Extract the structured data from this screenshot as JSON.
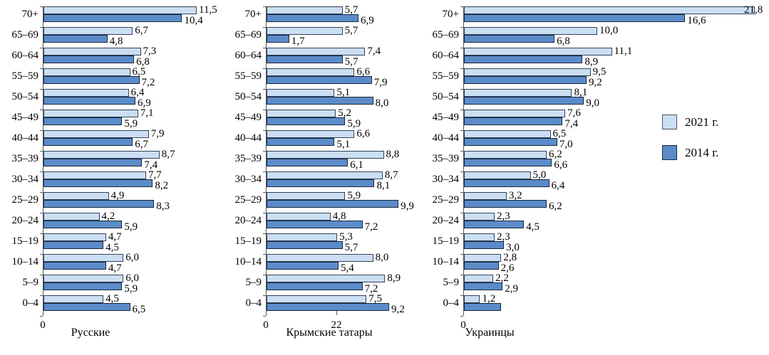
{
  "figure": {
    "colors": {
      "bar_2021": "#CBDEF2",
      "bar_2021_border": "#31425B",
      "bar_2014": "#5B8CC9",
      "bar_2014_border": "#17273E",
      "axis": "#595959",
      "text": "#000000",
      "background": "#FFFFFF"
    },
    "legend": {
      "items": [
        {
          "label": "2021 г.",
          "color": "#CBDEF2",
          "border": "#44546A"
        },
        {
          "label": "2014 г.",
          "color": "#5B8CC9",
          "border": "#17273E"
        }
      ]
    }
  },
  "chart_data": [
    {
      "type": "bar",
      "orientation": "horizontal",
      "title": "Русские",
      "grid": false,
      "xlim": [
        0,
        12
      ],
      "x_tick_labels": [
        "0"
      ],
      "categories": [
        "70+",
        "65–69",
        "60–64",
        "55–59",
        "50–54",
        "45–49",
        "40–44",
        "35–39",
        "30–34",
        "25–29",
        "20–24",
        "15–19",
        "10–14",
        "5–9",
        "0–4"
      ],
      "series": [
        {
          "name": "2021 г.",
          "values": [
            11.5,
            6.7,
            7.3,
            6.5,
            6.4,
            7.1,
            7.9,
            8.7,
            7.7,
            4.9,
            4.2,
            4.7,
            6.0,
            6.0,
            4.5
          ],
          "labels": [
            "11,5",
            "6,7",
            "7,3",
            "6,5",
            "6,4",
            "7,1",
            "7,9",
            "8,7",
            "7,7",
            "4,9",
            "4,2",
            "4,7",
            "6,0",
            "6,0",
            "4,5"
          ]
        },
        {
          "name": "2014 г.",
          "values": [
            10.4,
            4.8,
            6.8,
            7.2,
            6.9,
            5.9,
            6.7,
            7.4,
            8.2,
            8.3,
            5.9,
            4.5,
            4.7,
            5.9,
            6.5
          ],
          "labels": [
            "10,4",
            "4,8",
            "6,8",
            "7,2",
            "6,9",
            "5,9",
            "6,7",
            "7,4",
            "8,2",
            "8,3",
            "5,9",
            "4,5",
            "4,7",
            "5,9",
            "6,5"
          ]
        }
      ]
    },
    {
      "type": "bar",
      "orientation": "horizontal",
      "title": "Крымские татары",
      "grid": false,
      "xlim": [
        0,
        11
      ],
      "x_tick_labels": [
        "0",
        "22"
      ],
      "categories": [
        "70+",
        "65–69",
        "60–64",
        "55–59",
        "50–54",
        "45–49",
        "40–44",
        "35–39",
        "30–34",
        "25–29",
        "20–24",
        "15–19",
        "10–14",
        "5–9",
        "0–4"
      ],
      "series": [
        {
          "name": "2021 г.",
          "values": [
            5.7,
            5.7,
            7.4,
            6.6,
            5.1,
            5.2,
            6.6,
            8.8,
            8.7,
            5.9,
            4.8,
            5.3,
            8.0,
            8.9,
            7.5
          ],
          "labels": [
            "5,7",
            "5,7",
            "7,4",
            "6,6",
            "5,1",
            "5,2",
            "6,6",
            "8,8",
            "8,7",
            "5,9",
            "4,8",
            "5,3",
            "8,0",
            "8,9",
            "7,5"
          ]
        },
        {
          "name": "2014 г.",
          "values": [
            6.9,
            1.7,
            5.7,
            7.9,
            8.0,
            5.9,
            5.1,
            6.1,
            8.1,
            9.9,
            7.2,
            5.7,
            5.4,
            7.2,
            9.2
          ],
          "labels": [
            "6,9",
            "1,7",
            "5,7",
            "7,9",
            "8,0",
            "5,9",
            "5,1",
            "6,1",
            "8,1",
            "9,9",
            "7,2",
            "5,7",
            "5,4",
            "7,2",
            "9,2"
          ]
        }
      ]
    },
    {
      "type": "bar",
      "orientation": "horizontal",
      "title": "Украинцы",
      "grid": false,
      "xlim": [
        0,
        23
      ],
      "x_tick_labels": [
        "0"
      ],
      "categories": [
        "70+",
        "65–69",
        "60–64",
        "55–59",
        "50–54",
        "45–49",
        "40–44",
        "35–39",
        "30–34",
        "25–29",
        "20–24",
        "15–19",
        "10–14",
        "5–9",
        "0–4"
      ],
      "series": [
        {
          "name": "2021 г.",
          "values": [
            21.8,
            10.0,
            11.1,
            9.5,
            8.1,
            7.6,
            6.5,
            6.2,
            5.0,
            3.2,
            2.3,
            2.3,
            2.8,
            2.2,
            1.2
          ],
          "labels": [
            "21,8",
            "10,0",
            "11,1",
            "9,5",
            "8,1",
            "7,6",
            "6,5",
            "6,2",
            "5,0",
            "3,2",
            "2,3",
            "2,3",
            "2,8",
            "2,2",
            "1,2"
          ]
        },
        {
          "name": "2014 г.",
          "values": [
            16.6,
            6.8,
            8.9,
            9.2,
            9.0,
            7.4,
            7.0,
            6.6,
            6.4,
            6.2,
            4.5,
            3.0,
            2.6,
            2.9,
            2.8
          ],
          "labels": [
            "16,6",
            "6,8",
            "8,9",
            "9,2",
            "9,0",
            "7,4",
            "7,0",
            "6,6",
            "6,4",
            "6,2",
            "4,5",
            "3,0",
            "2,6",
            "2,9",
            ""
          ]
        }
      ]
    }
  ]
}
